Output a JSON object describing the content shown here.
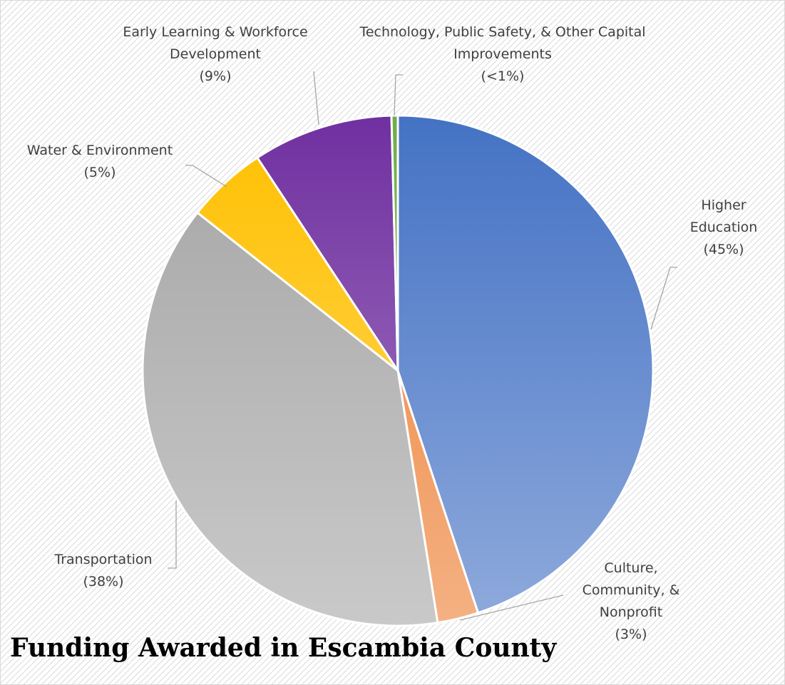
{
  "chart_data": {
    "type": "pie",
    "title": "Funding Awarded in Escambia County",
    "categories": [
      "Higher Education",
      "Culture, Community, & Nonprofit",
      "Transportation",
      "Water & Environment",
      "Early Learning & Workforce Development",
      "Technology, Public Safety, & Other Capital Improvements"
    ],
    "values": [
      45,
      2.6,
      38.2,
      5.1,
      8.9,
      0.4
    ],
    "value_labels": [
      "(45%)",
      "(3%)",
      "(38%)",
      "(5%)",
      "(9%)",
      "(<1%)"
    ],
    "colors": [
      "#4472c4",
      "#ed7d31",
      "#a5a5a5",
      "#ffc000",
      "#7030a0",
      "#70ad47"
    ]
  }
}
